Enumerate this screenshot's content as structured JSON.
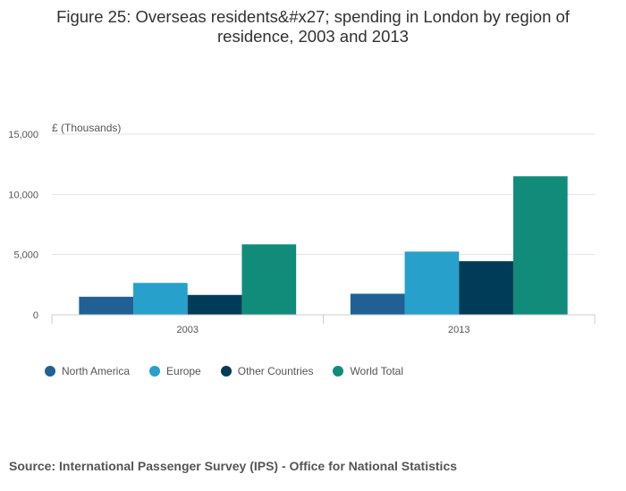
{
  "chart_data": {
    "type": "bar",
    "title": "Figure 25: Overseas residents&#x27; spending in London by region of residence, 2003 and 2013",
    "ylabel": "£ (Thousands)",
    "xlabel": "",
    "categories": [
      "2003",
      "2013"
    ],
    "ylim": [
      0,
      15000
    ],
    "yticks": [
      0,
      5000,
      10000,
      15000
    ],
    "ytick_labels": [
      "0",
      "5,000",
      "10,000",
      "15,000"
    ],
    "grid": true,
    "legend_position": "bottom-left",
    "series": [
      {
        "name": "North America",
        "color": "#206095",
        "values": [
          1500,
          1750
        ]
      },
      {
        "name": "Europe",
        "color": "#27a0cc",
        "values": [
          2650,
          5250
        ]
      },
      {
        "name": "Other Countries",
        "color": "#003c57",
        "values": [
          1650,
          4450
        ]
      },
      {
        "name": "World Total",
        "color": "#118c7b",
        "values": [
          5850,
          11500
        ]
      }
    ]
  },
  "source": "Source: International Passenger Survey (IPS) - Office for National Statistics"
}
